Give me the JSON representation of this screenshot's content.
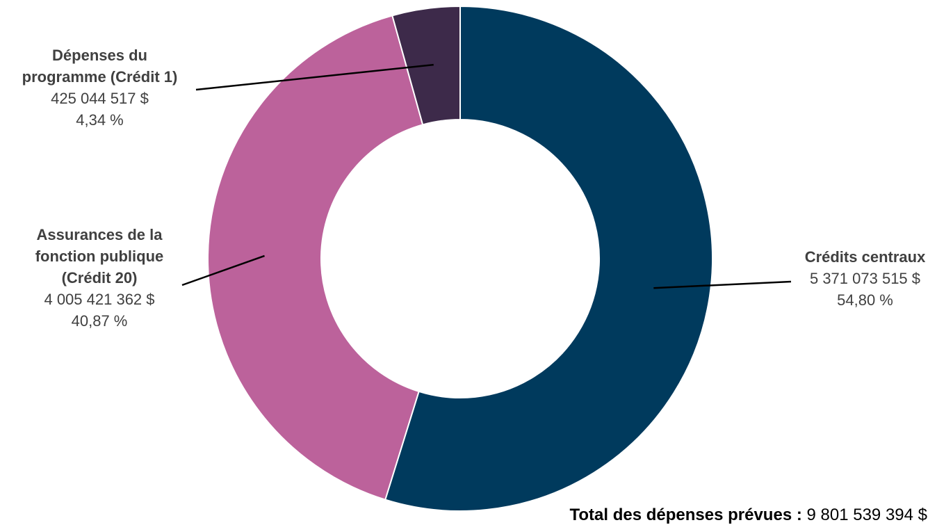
{
  "chart_data": {
    "type": "pie",
    "style": "donut",
    "slices": [
      {
        "name": "Crédits centraux",
        "value": 5371073515,
        "value_label": "5 371 073 515 $",
        "percent_label": "54,80 %",
        "color": "#003A5D"
      },
      {
        "name": "Assurances de la fonction publique (Crédit 20)",
        "value": 4005421362,
        "value_label": "4 005 421 362 $",
        "percent_label": "40,87 %",
        "color": "#BC629B"
      },
      {
        "name": "Dépenses du programme (Crédit 1)",
        "value": 425044517,
        "value_label": "425 044 517 $",
        "percent_label": "4,34 %",
        "color": "#3D2A4A"
      }
    ],
    "total_label": "Total des dépenses prévues :",
    "total_value": "9 801 539 394 $"
  }
}
